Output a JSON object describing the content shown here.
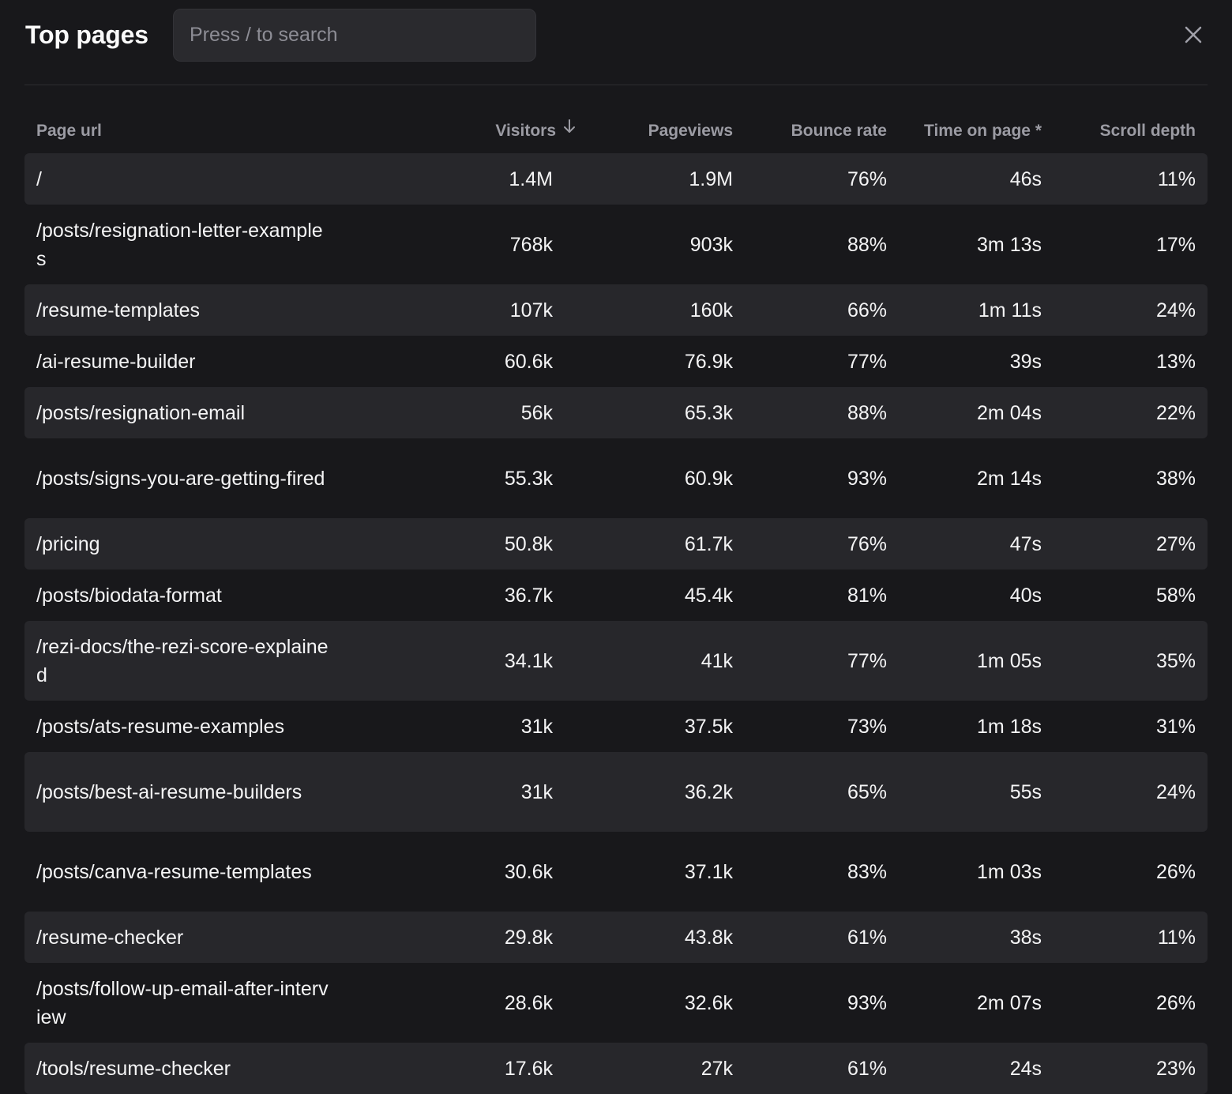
{
  "header": {
    "title": "Top pages",
    "search_placeholder": "Press / to search",
    "close_icon": "close-icon"
  },
  "table": {
    "columns": {
      "page_url": "Page url",
      "visitors": "Visitors",
      "pageviews": "Pageviews",
      "bounce_rate": "Bounce rate",
      "time_on_page": "Time on page *",
      "scroll_depth": "Scroll depth"
    },
    "sort_icon": "arrow-down-icon",
    "rows": [
      {
        "url": "/",
        "visitors": "1.4M",
        "pageviews": "1.9M",
        "bounce_rate": "76%",
        "time_on_page": "46s",
        "scroll_depth": "11%"
      },
      {
        "url": "/posts/resignation-letter-examples",
        "visitors": "768k",
        "pageviews": "903k",
        "bounce_rate": "88%",
        "time_on_page": "3m 13s",
        "scroll_depth": "17%"
      },
      {
        "url": "/resume-templates",
        "visitors": "107k",
        "pageviews": "160k",
        "bounce_rate": "66%",
        "time_on_page": "1m 11s",
        "scroll_depth": "24%"
      },
      {
        "url": "/ai-resume-builder",
        "visitors": "60.6k",
        "pageviews": "76.9k",
        "bounce_rate": "77%",
        "time_on_page": "39s",
        "scroll_depth": "13%"
      },
      {
        "url": "/posts/resignation-email",
        "visitors": "56k",
        "pageviews": "65.3k",
        "bounce_rate": "88%",
        "time_on_page": "2m 04s",
        "scroll_depth": "22%"
      },
      {
        "url": "/posts/signs-you-are-getting-fired",
        "visitors": "55.3k",
        "pageviews": "60.9k",
        "bounce_rate": "93%",
        "time_on_page": "2m 14s",
        "scroll_depth": "38%"
      },
      {
        "url": "/pricing",
        "visitors": "50.8k",
        "pageviews": "61.7k",
        "bounce_rate": "76%",
        "time_on_page": "47s",
        "scroll_depth": "27%"
      },
      {
        "url": "/posts/biodata-format",
        "visitors": "36.7k",
        "pageviews": "45.4k",
        "bounce_rate": "81%",
        "time_on_page": "40s",
        "scroll_depth": "58%"
      },
      {
        "url": "/rezi-docs/the-rezi-score-explained",
        "visitors": "34.1k",
        "pageviews": "41k",
        "bounce_rate": "77%",
        "time_on_page": "1m 05s",
        "scroll_depth": "35%"
      },
      {
        "url": "/posts/ats-resume-examples",
        "visitors": "31k",
        "pageviews": "37.5k",
        "bounce_rate": "73%",
        "time_on_page": "1m 18s",
        "scroll_depth": "31%"
      },
      {
        "url": "/posts/best-ai-resume-builders",
        "visitors": "31k",
        "pageviews": "36.2k",
        "bounce_rate": "65%",
        "time_on_page": "55s",
        "scroll_depth": "24%"
      },
      {
        "url": "/posts/canva-resume-templates",
        "visitors": "30.6k",
        "pageviews": "37.1k",
        "bounce_rate": "83%",
        "time_on_page": "1m 03s",
        "scroll_depth": "26%"
      },
      {
        "url": "/resume-checker",
        "visitors": "29.8k",
        "pageviews": "43.8k",
        "bounce_rate": "61%",
        "time_on_page": "38s",
        "scroll_depth": "11%"
      },
      {
        "url": "/posts/follow-up-email-after-interview",
        "visitors": "28.6k",
        "pageviews": "32.6k",
        "bounce_rate": "93%",
        "time_on_page": "2m 07s",
        "scroll_depth": "26%"
      },
      {
        "url": "/tools/resume-checker",
        "visitors": "17.6k",
        "pageviews": "27k",
        "bounce_rate": "61%",
        "time_on_page": "24s",
        "scroll_depth": "23%"
      }
    ]
  },
  "colors": {
    "background": "#18181b",
    "row_alt": "#27272b",
    "text": "#f4f4f5",
    "muted": "#9b9ba3"
  }
}
